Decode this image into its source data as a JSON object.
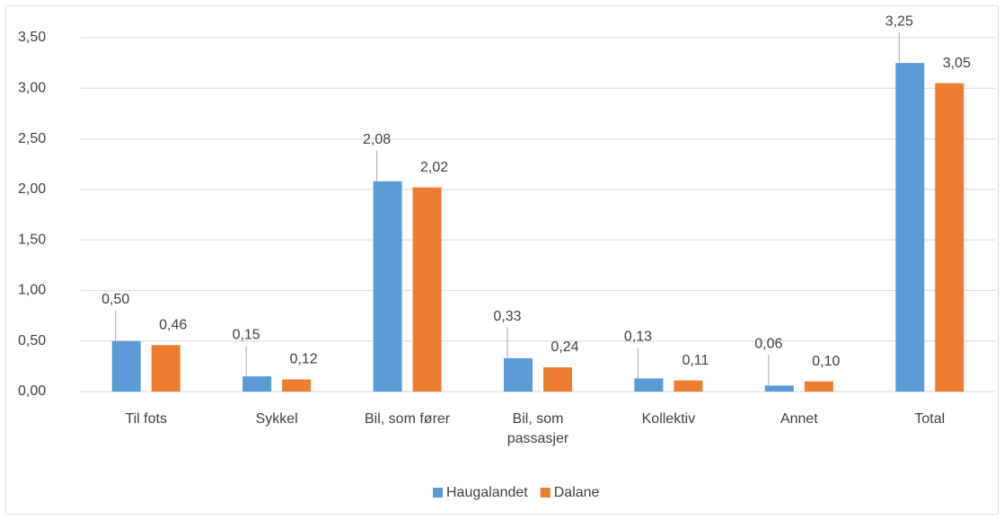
{
  "chart_data": {
    "type": "bar",
    "categories": [
      "Til fots",
      "Sykkel",
      "Bil, som fører",
      "Bil, som passasjer",
      "Kollektiv",
      "Annet",
      "Total"
    ],
    "series": [
      {
        "name": "Haugalandet",
        "color": "#5b9bd5",
        "values": [
          0.5,
          0.15,
          2.08,
          0.33,
          0.13,
          0.06,
          3.25
        ],
        "value_labels": [
          "0,50",
          "0,15",
          "2,08",
          "0,33",
          "0,13",
          "0,06",
          "3,25"
        ]
      },
      {
        "name": "Dalane",
        "color": "#ed7d31",
        "values": [
          0.46,
          0.12,
          2.02,
          0.24,
          0.11,
          0.1,
          3.05
        ],
        "value_labels": [
          "0,46",
          "0,12",
          "2,02",
          "0,24",
          "0,11",
          "0,10",
          "3,05"
        ]
      }
    ],
    "ylim": [
      0,
      3.5
    ],
    "yticks": [
      {
        "value": 0,
        "label": "0,00"
      },
      {
        "value": 0.5,
        "label": "0,50"
      },
      {
        "value": 1,
        "label": "1,00"
      },
      {
        "value": 1.5,
        "label": "1,50"
      },
      {
        "value": 2,
        "label": "2,00"
      },
      {
        "value": 2.5,
        "label": "2,50"
      },
      {
        "value": 3,
        "label": "3,00"
      },
      {
        "value": 3.5,
        "label": "3,50"
      }
    ],
    "grid": true,
    "legend": "bottom"
  }
}
